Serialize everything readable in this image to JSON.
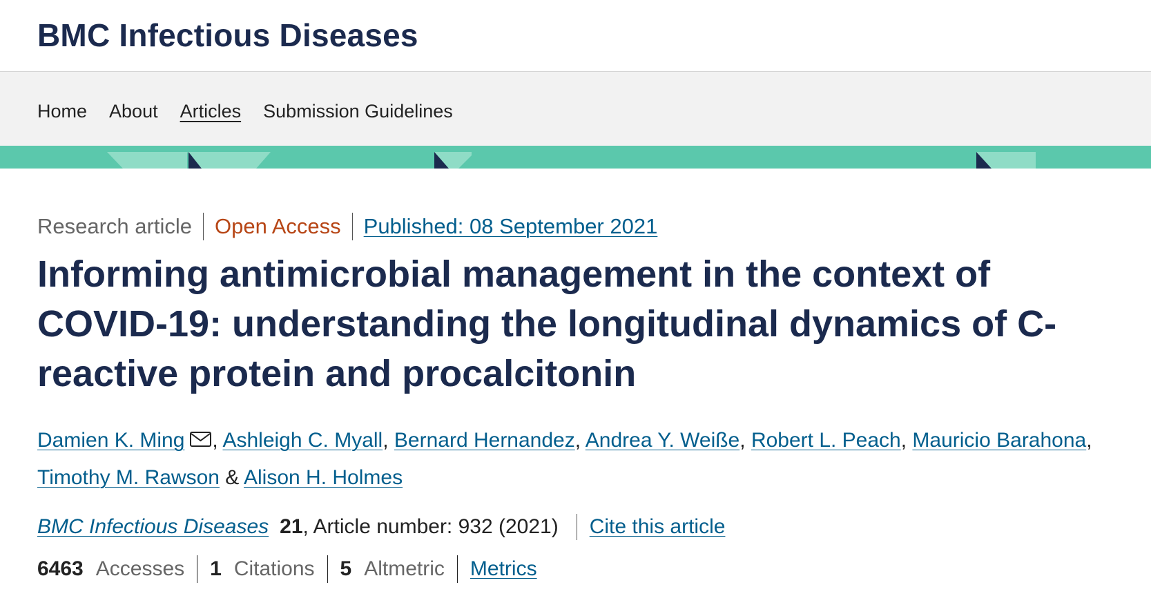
{
  "header": {
    "title": "BMC Infectious Diseases"
  },
  "nav": [
    "Home",
    "About",
    "Articles",
    "Submission Guidelines"
  ],
  "article": {
    "type": "Research article",
    "access": "Open Access",
    "published": "Published: 08 September 2021",
    "title": "Informing antimicrobial management in the context of COVID-19: understanding the longitudinal dynamics of C-reactive protein and procalcitonin",
    "authors": [
      {
        "name": "Damien K. Ming",
        "after": ","
      },
      {
        "name": "Ashleigh C. Myall",
        "after": ","
      },
      {
        "name": "Bernard Hernandez",
        "after": ","
      },
      {
        "name": "Andrea Y. Weiße",
        "after": ","
      },
      {
        "name": "Robert L. Peach",
        "after": ","
      },
      {
        "name": "Mauricio Barahona",
        "after": ","
      },
      {
        "name": "Timothy M. Rawson",
        "after": "&"
      },
      {
        "name": "Alison H. Holmes"
      }
    ],
    "citation": {
      "journal": "BMC Infectious Diseases",
      "volume": "21",
      "details": ", Article number: 932 (2021)",
      "cite": "Cite this article"
    },
    "metrics": [
      {
        "value": "6463",
        "label": "Accesses"
      },
      {
        "value": "1",
        "label": "Citations"
      },
      {
        "value": "5",
        "label": "Altmetric"
      }
    ],
    "metrics_link": "Metrics"
  }
}
